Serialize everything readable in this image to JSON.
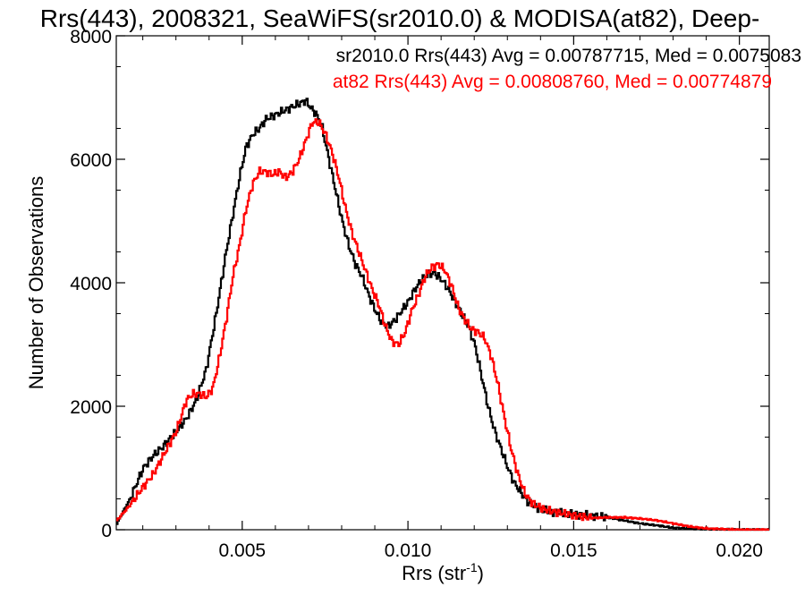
{
  "chart_data": {
    "type": "line",
    "title": "Rrs(443), 2008321, SeaWiFS(sr2010.0) & MODISA(at82), Deep-",
    "xlabel": "Rrs (str",
    "xlabel_superscript": "-1",
    "xlabel_suffix": ")",
    "ylabel": "Number of Observations",
    "xlim": [
      0.0012,
      0.0209
    ],
    "ylim": [
      0,
      8000
    ],
    "x_ticks": [
      0.005,
      0.01,
      0.015,
      0.02
    ],
    "x_tick_labels": [
      "0.005",
      "0.010",
      "0.015",
      "0.020"
    ],
    "y_ticks": [
      0,
      2000,
      4000,
      6000,
      8000
    ],
    "y_tick_labels": [
      "0",
      "2000",
      "4000",
      "6000",
      "8000"
    ],
    "grid": false,
    "legend_position": "top-right",
    "series": [
      {
        "name": "sr2010.0 Rrs(443) Avg = 0.00787715, Med = 0.0075083",
        "color": "#000000",
        "x": [
          0.0012,
          0.0016,
          0.002,
          0.0023,
          0.0026,
          0.003,
          0.0033,
          0.0036,
          0.0039,
          0.0042,
          0.0045,
          0.0047,
          0.0049,
          0.0051,
          0.0053,
          0.0055,
          0.0057,
          0.0059,
          0.0061,
          0.0063,
          0.0065,
          0.0067,
          0.0069,
          0.0071,
          0.0072,
          0.0074,
          0.0076,
          0.0078,
          0.008,
          0.0082,
          0.0084,
          0.0086,
          0.0088,
          0.009,
          0.0092,
          0.0094,
          0.0096,
          0.0098,
          0.01,
          0.0102,
          0.0104,
          0.0106,
          0.0108,
          0.011,
          0.0112,
          0.0114,
          0.0116,
          0.0118,
          0.012,
          0.0122,
          0.0124,
          0.0126,
          0.0128,
          0.013,
          0.0132,
          0.0134,
          0.0136,
          0.0138,
          0.014,
          0.0142,
          0.0145,
          0.015,
          0.0155,
          0.016,
          0.0165,
          0.017,
          0.0175,
          0.018,
          0.019,
          0.02,
          0.0209
        ],
        "y": [
          100,
          500,
          1000,
          1200,
          1350,
          1600,
          1800,
          2100,
          2600,
          3500,
          4500,
          5100,
          5700,
          6200,
          6400,
          6500,
          6650,
          6700,
          6750,
          6800,
          6850,
          6900,
          6950,
          6800,
          6750,
          6500,
          6000,
          5500,
          5000,
          4600,
          4300,
          4100,
          3800,
          3550,
          3350,
          3300,
          3400,
          3550,
          3700,
          3900,
          4050,
          4150,
          4150,
          4050,
          3900,
          3700,
          3500,
          3300,
          3000,
          2500,
          2000,
          1600,
          1300,
          1000,
          750,
          600,
          450,
          380,
          330,
          300,
          280,
          250,
          230,
          200,
          150,
          100,
          70,
          30,
          10,
          0,
          0
        ]
      },
      {
        "name": "at82 Rrs(443) Avg = 0.00808760, Med = 0.00774879",
        "color": "#ff0000",
        "x": [
          0.0012,
          0.0016,
          0.002,
          0.0023,
          0.0026,
          0.003,
          0.0033,
          0.0035,
          0.0037,
          0.0039,
          0.0041,
          0.0043,
          0.0045,
          0.0047,
          0.0049,
          0.0051,
          0.0053,
          0.0055,
          0.0057,
          0.0059,
          0.0061,
          0.0063,
          0.0065,
          0.0067,
          0.0069,
          0.0071,
          0.0073,
          0.0075,
          0.0077,
          0.0079,
          0.0081,
          0.0083,
          0.0085,
          0.0087,
          0.0089,
          0.0091,
          0.0093,
          0.0095,
          0.0097,
          0.0099,
          0.0101,
          0.0103,
          0.0105,
          0.0107,
          0.0109,
          0.0111,
          0.0113,
          0.0115,
          0.0117,
          0.0119,
          0.0121,
          0.0123,
          0.0125,
          0.0127,
          0.0129,
          0.0131,
          0.0133,
          0.0135,
          0.0137,
          0.0139,
          0.0141,
          0.0145,
          0.015,
          0.0155,
          0.016,
          0.0165,
          0.017,
          0.0175,
          0.018,
          0.0185,
          0.019,
          0.02,
          0.0209
        ],
        "y": [
          150,
          400,
          700,
          900,
          1200,
          1600,
          2100,
          2200,
          2200,
          2150,
          2300,
          2800,
          3400,
          4100,
          4600,
          5200,
          5600,
          5800,
          5800,
          5750,
          5800,
          5700,
          5800,
          6000,
          6300,
          6600,
          6600,
          6400,
          6100,
          5700,
          5200,
          4800,
          4500,
          4200,
          3900,
          3650,
          3300,
          3050,
          3000,
          3200,
          3550,
          3800,
          4100,
          4250,
          4300,
          4200,
          3950,
          3600,
          3400,
          3250,
          3200,
          3100,
          2800,
          2350,
          1800,
          1300,
          900,
          600,
          450,
          380,
          330,
          280,
          230,
          190,
          200,
          200,
          180,
          150,
          100,
          50,
          20,
          0,
          0
        ]
      }
    ]
  }
}
